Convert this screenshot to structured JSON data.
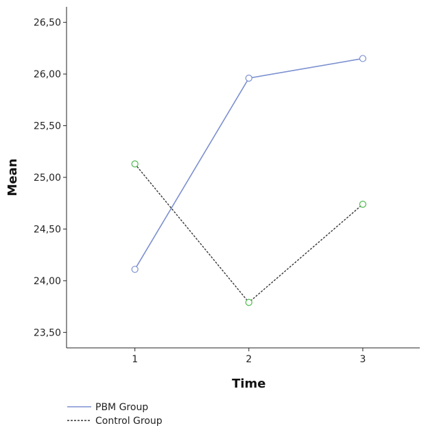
{
  "chart_data": {
    "type": "line",
    "xlabel": "Time",
    "ylabel": "Mean",
    "x": [
      1,
      2,
      3
    ],
    "x_tick_labels": [
      "1",
      "2",
      "3"
    ],
    "xlim": [
      0.4,
      3.5
    ],
    "ylim": [
      23.35,
      26.65
    ],
    "y_ticks": [
      23.5,
      24.0,
      24.5,
      25.0,
      25.5,
      26.0,
      26.5
    ],
    "y_tick_labels": [
      "23,50",
      "24,00",
      "24,50",
      "25,00",
      "25,50",
      "26,00",
      "26,50"
    ],
    "grid": false,
    "legend_position": "bottom-left",
    "series": [
      {
        "name": "PBM Group",
        "values": [
          24.11,
          25.96,
          26.15
        ],
        "color": "#7b8fcf",
        "line_style": "solid",
        "marker": "open-circle"
      },
      {
        "name": "Control Group",
        "values": [
          25.13,
          23.79,
          24.74
        ],
        "color": "#333333",
        "marker_color": "#4cbb4c",
        "line_style": "dashed",
        "marker": "open-circle"
      }
    ]
  }
}
